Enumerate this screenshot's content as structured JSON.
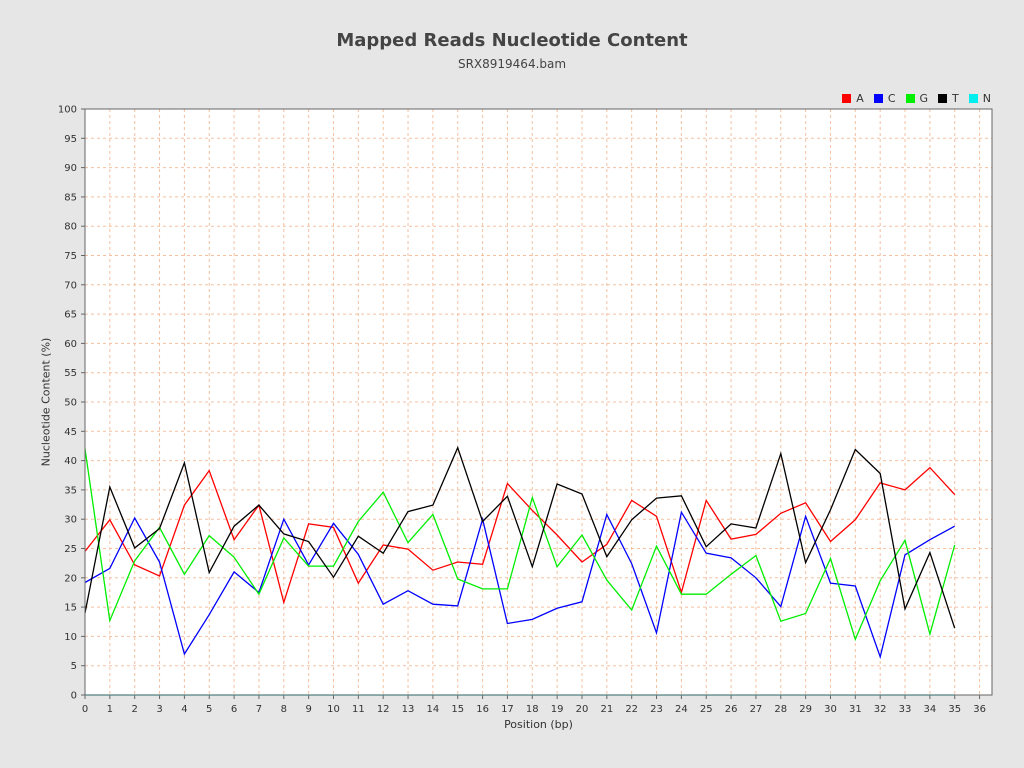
{
  "chart_data": {
    "type": "line",
    "title": "Mapped Reads Nucleotide Content",
    "subtitle": "SRX8919464.bam",
    "xlabel": "Position (bp)",
    "ylabel": "Nucleotide Content (%)",
    "xlim": [
      0,
      36.5
    ],
    "ylim": [
      0,
      100
    ],
    "x_ticks": [
      0,
      1,
      2,
      3,
      4,
      5,
      6,
      7,
      8,
      9,
      10,
      11,
      12,
      13,
      14,
      15,
      16,
      17,
      18,
      19,
      20,
      21,
      22,
      23,
      24,
      25,
      26,
      27,
      28,
      29,
      30,
      31,
      32,
      33,
      34,
      35,
      36
    ],
    "y_ticks": [
      0,
      5,
      10,
      15,
      20,
      25,
      30,
      35,
      40,
      45,
      50,
      55,
      60,
      65,
      70,
      75,
      80,
      85,
      90,
      95,
      100
    ],
    "grid": true,
    "legend_position": "top-right",
    "x": [
      0,
      1,
      2,
      3,
      4,
      5,
      6,
      7,
      8,
      9,
      10,
      11,
      12,
      13,
      14,
      15,
      16,
      17,
      18,
      19,
      20,
      21,
      22,
      23,
      24,
      25,
      26,
      27,
      28,
      29,
      30,
      31,
      32,
      33,
      34,
      35
    ],
    "series": [
      {
        "name": "A",
        "color": "#ff0000",
        "values": [
          24.5,
          29.9,
          22.2,
          20.3,
          32.4,
          38.3,
          26.5,
          32.4,
          15.8,
          29.2,
          28.6,
          19.1,
          25.6,
          24.9,
          21.3,
          22.7,
          22.3,
          36.1,
          31.5,
          27.3,
          22.7,
          25.7,
          33.2,
          30.5,
          17.5,
          33.2,
          26.6,
          27.4,
          31.0,
          32.8,
          26.2,
          29.9,
          36.2,
          35.0,
          38.8,
          34.2
        ]
      },
      {
        "name": "C",
        "color": "#0000ff",
        "values": [
          19.2,
          21.6,
          30.2,
          22.7,
          7.0,
          13.7,
          21.0,
          17.5,
          30.0,
          22.2,
          29.3,
          24.0,
          15.5,
          17.8,
          15.5,
          15.2,
          30.0,
          12.2,
          12.9,
          14.8,
          15.9,
          30.8,
          22.4,
          10.6,
          31.2,
          24.2,
          23.4,
          20.0,
          15.1,
          30.5,
          19.1,
          18.6,
          6.5,
          23.9,
          26.5,
          28.8
        ]
      },
      {
        "name": "G",
        "color": "#00ee00",
        "values": [
          42.0,
          12.7,
          22.9,
          28.6,
          20.6,
          27.2,
          23.5,
          17.2,
          26.8,
          22.0,
          22.0,
          29.6,
          34.6,
          26.0,
          30.8,
          19.8,
          18.1,
          18.1,
          33.7,
          21.9,
          27.3,
          19.6,
          14.5,
          25.4,
          17.2,
          17.2,
          20.6,
          23.8,
          12.6,
          13.9,
          23.3,
          9.5,
          19.5,
          26.4,
          10.4,
          25.6
        ]
      },
      {
        "name": "T",
        "color": "#000000",
        "values": [
          14.0,
          35.5,
          25.1,
          28.4,
          39.6,
          20.9,
          28.8,
          32.4,
          27.5,
          26.2,
          20.1,
          27.1,
          24.2,
          31.3,
          32.4,
          42.2,
          29.6,
          33.9,
          21.9,
          36.0,
          34.3,
          23.6,
          29.9,
          33.6,
          34.0,
          25.3,
          29.2,
          28.5,
          41.2,
          22.6,
          31.6,
          41.9,
          37.8,
          14.7,
          24.3,
          11.4
        ]
      },
      {
        "name": "N",
        "color": "#00eeee",
        "values": [
          0,
          0,
          0,
          0,
          0,
          0,
          0,
          0,
          0,
          0,
          0,
          0,
          0,
          0,
          0,
          0,
          0,
          0,
          0,
          0,
          0,
          0,
          0,
          0,
          0,
          0,
          0,
          0,
          0,
          0,
          0,
          0,
          0,
          0,
          0,
          0
        ]
      }
    ]
  },
  "colors": {
    "page_background": "#e6e6e6",
    "plot_background": "#ffffff",
    "gridline": "#f4c0a0",
    "axis": "#666666"
  }
}
